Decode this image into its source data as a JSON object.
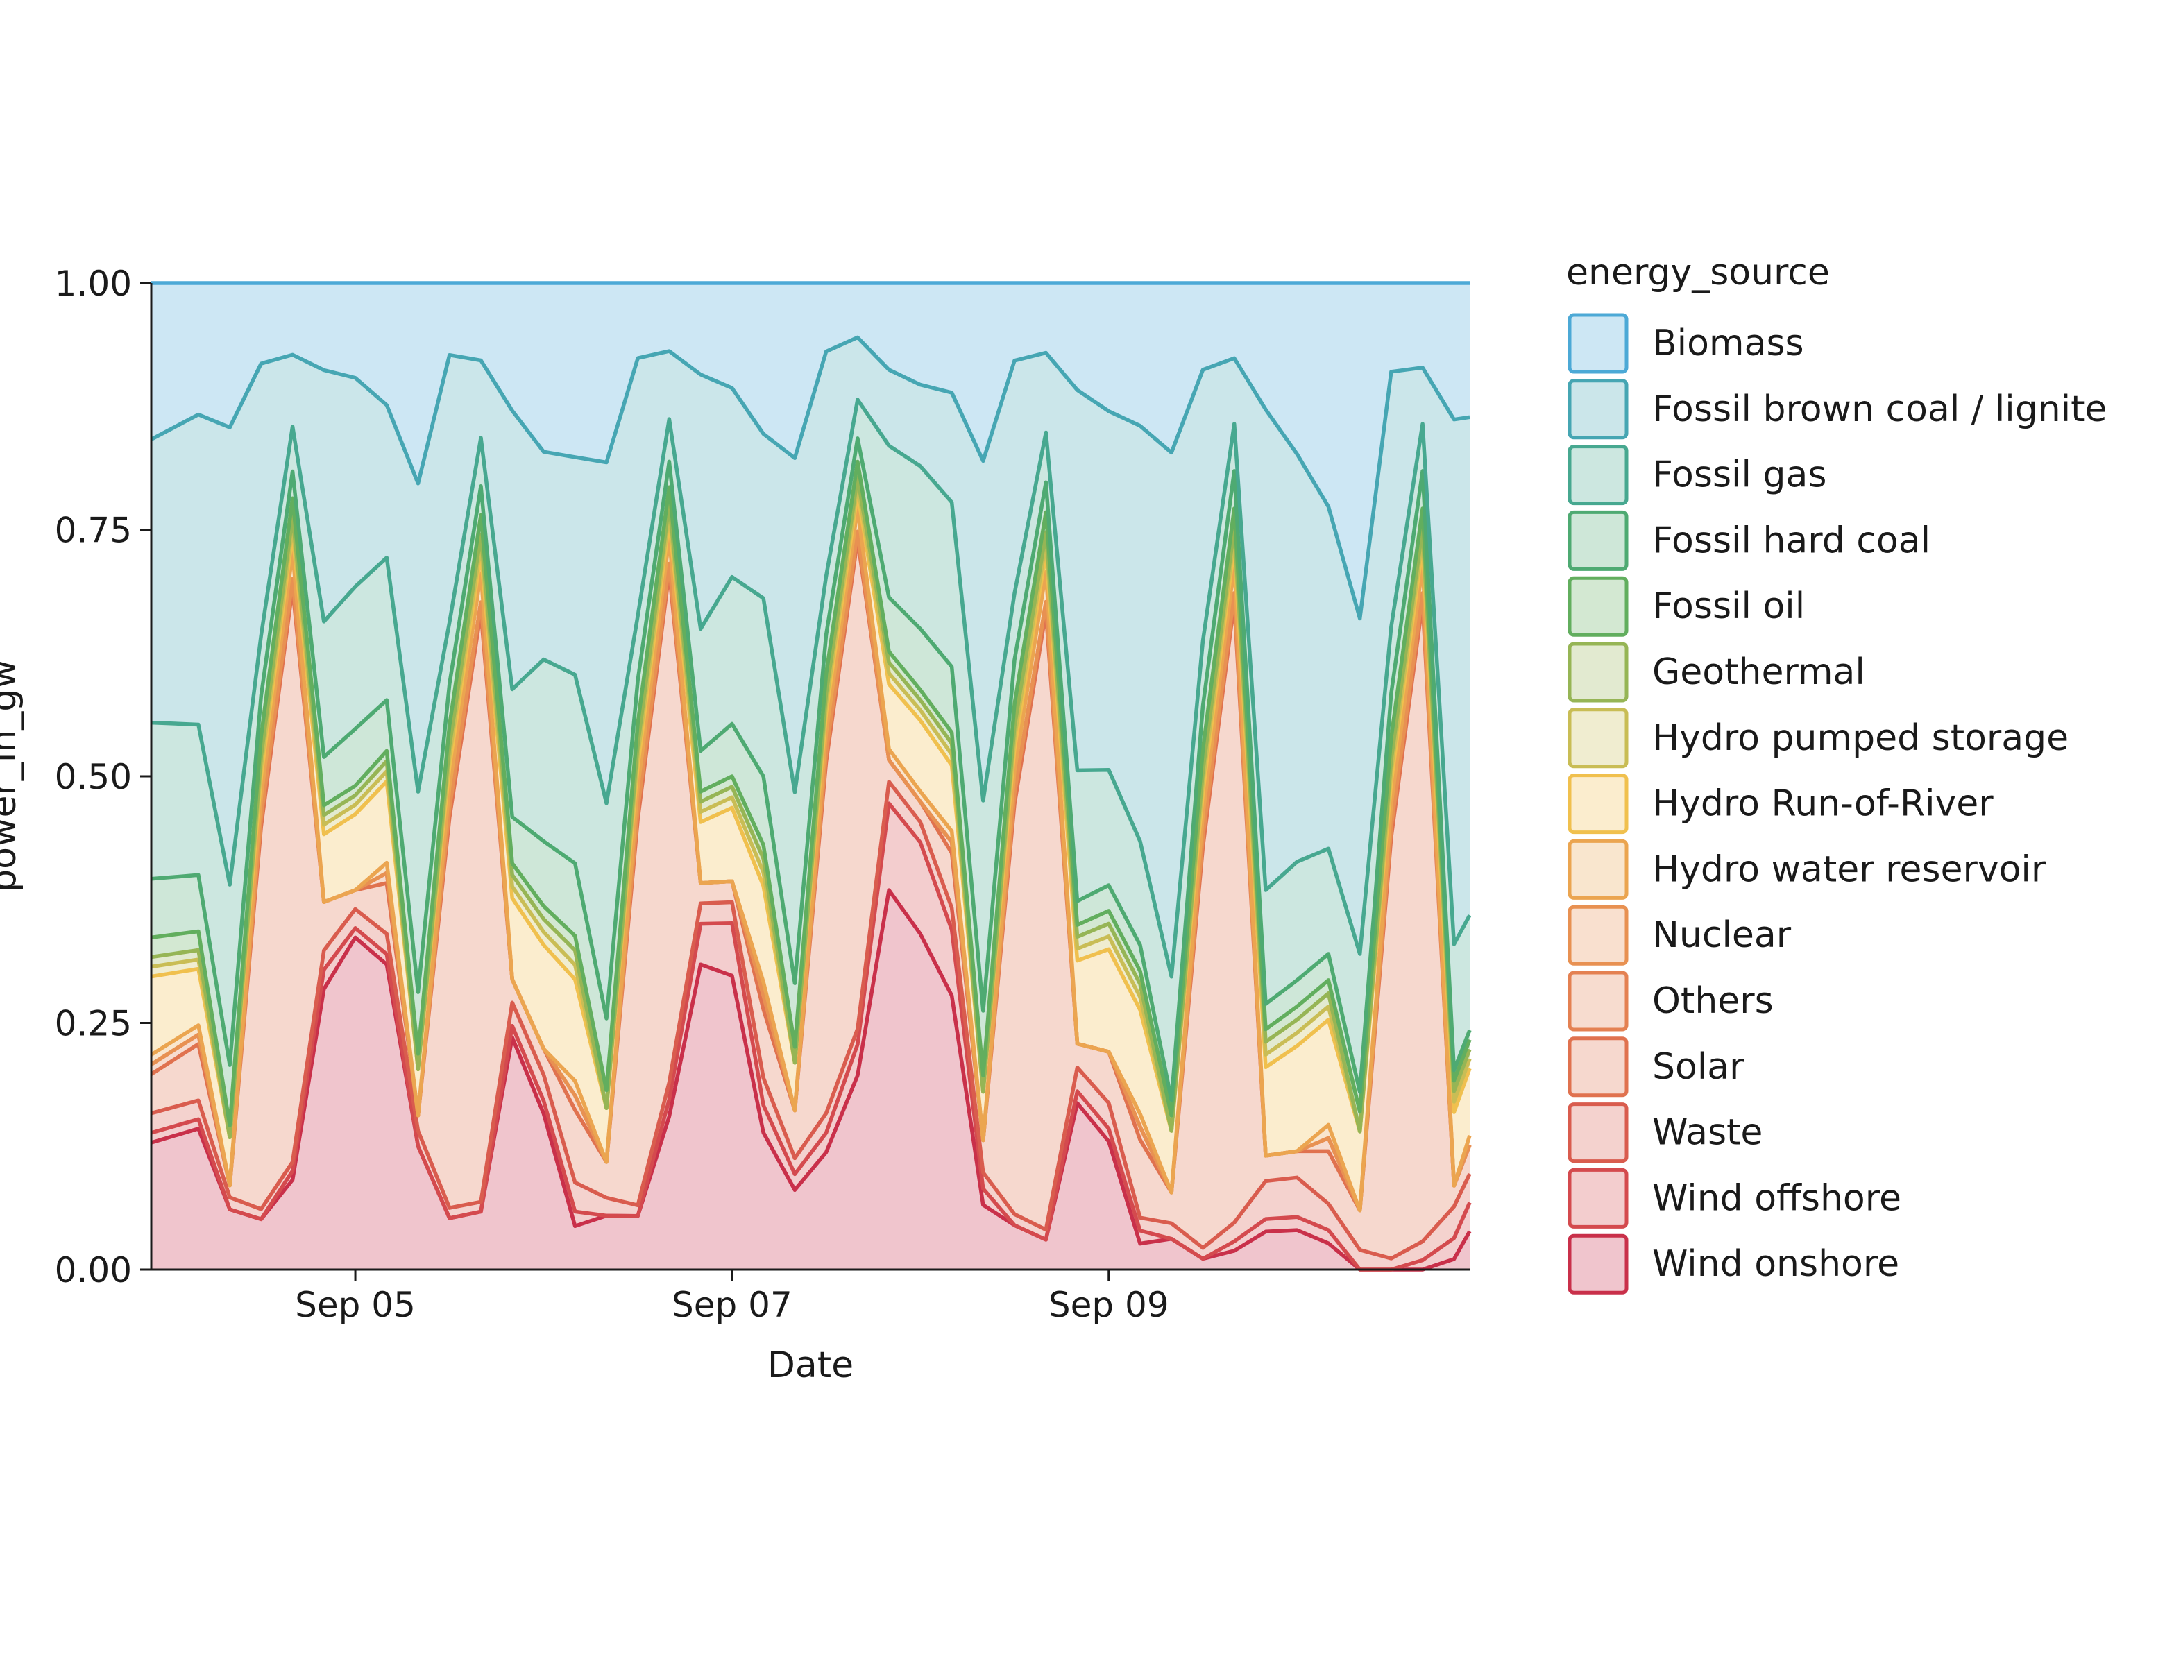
{
  "chart_data": {
    "type": "area",
    "stacked": true,
    "normalized": true,
    "xlabel": "Date",
    "ylabel": "power_in_gw",
    "ylim": [
      0,
      1
    ],
    "xlim": [
      "2024-09-03 22:00",
      "2024-09-10 22:00"
    ],
    "yticks": [
      0,
      0.25,
      0.5,
      0.75,
      1
    ],
    "ytick_labels": [
      "0.00",
      "0.25",
      "0.50",
      "0.75",
      "1.00"
    ],
    "xtick_dates": [
      "2024-09-05",
      "2024-09-07",
      "2024-09-09"
    ],
    "xtick_labels": [
      "Sep 05",
      "Sep 07",
      "Sep 09"
    ],
    "grid": false,
    "legend_title": "energy_source",
    "legend_position": "right",
    "x": [
      "2024-09-03 22:00",
      "2024-09-04 04:00",
      "2024-09-04 08:00",
      "2024-09-04 12:00",
      "2024-09-04 16:00",
      "2024-09-04 20:00",
      "2024-09-05 00:00",
      "2024-09-05 04:00",
      "2024-09-05 08:00",
      "2024-09-05 12:00",
      "2024-09-05 16:00",
      "2024-09-05 20:00",
      "2024-09-06 00:00",
      "2024-09-06 04:00",
      "2024-09-06 08:00",
      "2024-09-06 12:00",
      "2024-09-06 16:00",
      "2024-09-06 20:00",
      "2024-09-07 00:00",
      "2024-09-07 04:00",
      "2024-09-07 08:00",
      "2024-09-07 12:00",
      "2024-09-07 16:00",
      "2024-09-07 20:00",
      "2024-09-08 00:00",
      "2024-09-08 04:00",
      "2024-09-08 08:00",
      "2024-09-08 12:00",
      "2024-09-08 16:00",
      "2024-09-08 20:00",
      "2024-09-09 00:00",
      "2024-09-09 04:00",
      "2024-09-09 08:00",
      "2024-09-09 12:00",
      "2024-09-09 16:00",
      "2024-09-09 20:00",
      "2024-09-10 00:00",
      "2024-09-10 04:00",
      "2024-09-10 08:00",
      "2024-09-10 12:00",
      "2024-09-10 16:00",
      "2024-09-10 20:00",
      "2024-09-10 22:00"
    ],
    "series": [
      {
        "name": "Wind onshore",
        "color": "#c9304a",
        "values": [
          0.13,
          0.15,
          0.05,
          0.05,
          0.1,
          0.29,
          0.35,
          0.3,
          0.08,
          0.05,
          0.06,
          0.2,
          0.12,
          0.03,
          0.03,
          0.05,
          0.18,
          0.3,
          0.28,
          0.1,
          0.05,
          0.12,
          0.25,
          0.35,
          0.33,
          0.25,
          0.04,
          0.04,
          0.03,
          0.14,
          0.1,
          0.02,
          0.02,
          0.01,
          0.02,
          0.03,
          0.03,
          0.02,
          0.0,
          0.0,
          0.0,
          0.01,
          0.04
        ]
      },
      {
        "name": "Wind offshore",
        "color": "#d44a4e",
        "values": [
          0.01,
          0.01,
          0.0,
          0.0,
          0.01,
          0.02,
          0.01,
          0.01,
          0.0,
          0.0,
          0.0,
          0.01,
          0.01,
          0.01,
          0.0,
          0.0,
          0.02,
          0.04,
          0.05,
          0.02,
          0.01,
          0.02,
          0.04,
          0.08,
          0.09,
          0.06,
          0.01,
          0.0,
          0.0,
          0.01,
          0.01,
          0.01,
          0.0,
          0.0,
          0.01,
          0.01,
          0.01,
          0.01,
          0.0,
          0.0,
          0.01,
          0.02,
          0.03
        ]
      },
      {
        "name": "Waste",
        "color": "#d95c4e",
        "values": [
          0.02,
          0.02,
          0.01,
          0.01,
          0.01,
          0.02,
          0.02,
          0.02,
          0.01,
          0.01,
          0.01,
          0.02,
          0.02,
          0.02,
          0.01,
          0.01,
          0.02,
          0.02,
          0.02,
          0.02,
          0.01,
          0.02,
          0.02,
          0.02,
          0.02,
          0.02,
          0.01,
          0.01,
          0.01,
          0.02,
          0.02,
          0.01,
          0.01,
          0.01,
          0.02,
          0.03,
          0.03,
          0.02,
          0.01,
          0.01,
          0.02,
          0.03,
          0.03
        ]
      },
      {
        "name": "Solar",
        "color": "#e0724f",
        "values": [
          0.04,
          0.06,
          0.01,
          0.38,
          0.64,
          0.05,
          0.02,
          0.05,
          0.01,
          0.38,
          0.61,
          0.02,
          0.02,
          0.05,
          0.02,
          0.36,
          0.6,
          0.02,
          0.02,
          0.05,
          0.03,
          0.36,
          0.63,
          0.02,
          0.02,
          0.05,
          0.02,
          0.37,
          0.62,
          0.02,
          0.04,
          0.06,
          0.02,
          0.37,
          0.66,
          0.02,
          0.02,
          0.04,
          0.02,
          0.38,
          0.68,
          0.02,
          0.03
        ]
      },
      {
        "name": "Others",
        "color": "#e48152",
        "values": [
          0.01,
          0.01,
          0.0,
          0.01,
          0.01,
          0.0,
          0.0,
          0.01,
          0.0,
          0.01,
          0.01,
          0.0,
          0.0,
          0.01,
          0.0,
          0.01,
          0.01,
          0.0,
          0.0,
          0.01,
          0.0,
          0.01,
          0.01,
          0.0,
          0.0,
          0.01,
          0.0,
          0.01,
          0.01,
          0.0,
          0.0,
          0.01,
          0.0,
          0.01,
          0.01,
          0.0,
          0.0,
          0.01,
          0.0,
          0.01,
          0.01,
          0.0,
          0.0
        ]
      },
      {
        "name": "Nuclear",
        "color": "#e89152",
        "values": [
          0,
          0,
          0,
          0,
          0,
          0,
          0,
          0,
          0,
          0,
          0,
          0,
          0,
          0,
          0,
          0,
          0,
          0,
          0,
          0,
          0,
          0,
          0,
          0,
          0,
          0,
          0,
          0,
          0,
          0,
          0,
          0,
          0,
          0,
          0,
          0,
          0,
          0,
          0,
          0,
          0,
          0,
          0
        ]
      },
      {
        "name": "Hydro water reservoir",
        "color": "#eba550",
        "values": [
          0.01,
          0.01,
          0.0,
          0.02,
          0.03,
          0.0,
          0.0,
          0.01,
          0.0,
          0.02,
          0.03,
          0.0,
          0.0,
          0.01,
          0.0,
          0.02,
          0.03,
          0.0,
          0.0,
          0.01,
          0.0,
          0.02,
          0.03,
          0.01,
          0.01,
          0.01,
          0.0,
          0.02,
          0.03,
          0.0,
          0.0,
          0.01,
          0.0,
          0.02,
          0.03,
          0.0,
          0.0,
          0.01,
          0.0,
          0.02,
          0.03,
          0.0,
          0.01
        ]
      },
      {
        "name": "Hydro Run-of-River",
        "color": "#f0c04e",
        "values": [
          0.08,
          0.06,
          0.04,
          0.02,
          0.02,
          0.07,
          0.08,
          0.08,
          0.03,
          0.02,
          0.02,
          0.07,
          0.08,
          0.07,
          0.03,
          0.02,
          0.02,
          0.06,
          0.07,
          0.07,
          0.03,
          0.02,
          0.02,
          0.06,
          0.07,
          0.06,
          0.03,
          0.02,
          0.02,
          0.07,
          0.08,
          0.08,
          0.04,
          0.02,
          0.02,
          0.07,
          0.08,
          0.08,
          0.04,
          0.02,
          0.02,
          0.07,
          0.07
        ]
      },
      {
        "name": "Hydro pumped storage",
        "color": "#c9bd55",
        "values": [
          0.01,
          0.01,
          0.0,
          0.01,
          0.01,
          0.01,
          0.01,
          0.01,
          0.0,
          0.01,
          0.01,
          0.01,
          0.01,
          0.01,
          0.0,
          0.01,
          0.01,
          0.01,
          0.01,
          0.01,
          0.0,
          0.01,
          0.01,
          0.01,
          0.01,
          0.01,
          0.0,
          0.01,
          0.01,
          0.01,
          0.01,
          0.01,
          0.0,
          0.01,
          0.01,
          0.01,
          0.01,
          0.01,
          0.0,
          0.01,
          0.01,
          0.01,
          0.01
        ]
      },
      {
        "name": "Geothermal",
        "color": "#96b555",
        "values": [
          0.01,
          0.01,
          0.0,
          0.01,
          0.01,
          0.01,
          0.01,
          0.01,
          0.0,
          0.01,
          0.01,
          0.01,
          0.01,
          0.01,
          0.0,
          0.01,
          0.01,
          0.01,
          0.01,
          0.01,
          0.0,
          0.01,
          0.01,
          0.01,
          0.01,
          0.01,
          0.0,
          0.01,
          0.01,
          0.01,
          0.01,
          0.01,
          0.0,
          0.01,
          0.01,
          0.01,
          0.01,
          0.01,
          0.0,
          0.01,
          0.01,
          0.01,
          0.01
        ]
      },
      {
        "name": "Fossil oil",
        "color": "#62ae5e",
        "values": [
          0.02,
          0.02,
          0.01,
          0.02,
          0.02,
          0.01,
          0.01,
          0.01,
          0.01,
          0.02,
          0.02,
          0.01,
          0.01,
          0.01,
          0.01,
          0.02,
          0.02,
          0.01,
          0.01,
          0.01,
          0.01,
          0.02,
          0.02,
          0.01,
          0.01,
          0.01,
          0.01,
          0.02,
          0.02,
          0.01,
          0.01,
          0.01,
          0.01,
          0.02,
          0.02,
          0.01,
          0.01,
          0.01,
          0.01,
          0.02,
          0.02,
          0.01,
          0.01
        ]
      },
      {
        "name": "Fossil hard coal",
        "color": "#4eaa72",
        "values": [
          0.06,
          0.06,
          0.05,
          0.04,
          0.03,
          0.05,
          0.06,
          0.05,
          0.04,
          0.04,
          0.03,
          0.04,
          0.05,
          0.05,
          0.04,
          0.04,
          0.03,
          0.04,
          0.05,
          0.05,
          0.04,
          0.04,
          0.03,
          0.05,
          0.06,
          0.06,
          0.04,
          0.04,
          0.03,
          0.02,
          0.02,
          0.02,
          0.01,
          0.04,
          0.04,
          0.02,
          0.02,
          0.02,
          0.01,
          0.04,
          0.04,
          0.01,
          0.01
        ]
      },
      {
        "name": "Fossil gas",
        "color": "#47a890",
        "values": [
          0.16,
          0.16,
          0.15,
          0.06,
          0.05,
          0.14,
          0.15,
          0.14,
          0.13,
          0.06,
          0.05,
          0.11,
          0.14,
          0.13,
          0.12,
          0.06,
          0.05,
          0.12,
          0.14,
          0.13,
          0.12,
          0.06,
          0.05,
          0.14,
          0.16,
          0.15,
          0.13,
          0.06,
          0.05,
          0.11,
          0.09,
          0.08,
          0.08,
          0.06,
          0.05,
          0.09,
          0.09,
          0.08,
          0.07,
          0.06,
          0.05,
          0.12,
          0.12
        ]
      },
      {
        "name": "Fossil brown coal / lignite",
        "color": "#46a6b3",
        "values": [
          0.29,
          0.33,
          0.38,
          0.27,
          0.08,
          0.26,
          0.22,
          0.15,
          0.2,
          0.26,
          0.08,
          0.24,
          0.16,
          0.15,
          0.19,
          0.24,
          0.08,
          0.25,
          0.18,
          0.12,
          0.21,
          0.23,
          0.08,
          0.07,
          0.08,
          0.1,
          0.21,
          0.21,
          0.08,
          0.32,
          0.28,
          0.32,
          0.34,
          0.25,
          0.07,
          0.38,
          0.31,
          0.26,
          0.17,
          0.23,
          0.06,
          0.5,
          0.52
        ]
      },
      {
        "name": "Biomass",
        "color": "#4ca9d6",
        "values": [
          0.16,
          0.14,
          0.12,
          0.08,
          0.08,
          0.09,
          0.1,
          0.12,
          0.13,
          0.07,
          0.08,
          0.11,
          0.13,
          0.12,
          0.1,
          0.07,
          0.08,
          0.09,
          0.1,
          0.11,
          0.11,
          0.07,
          0.07,
          0.08,
          0.1,
          0.1,
          0.11,
          0.07,
          0.07,
          0.09,
          0.1,
          0.11,
          0.11,
          0.08,
          0.08,
          0.1,
          0.13,
          0.17,
          0.17,
          0.08,
          0.09,
          0.13,
          0.14
        ]
      }
    ]
  }
}
